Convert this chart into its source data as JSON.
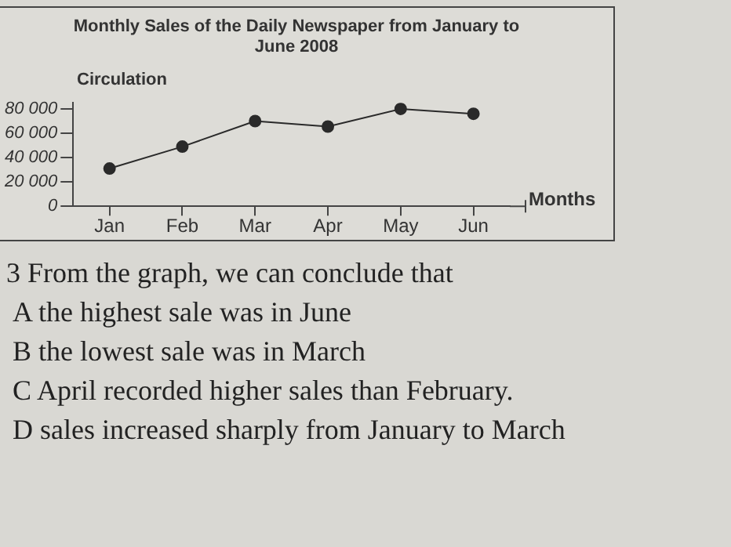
{
  "chart_data": {
    "type": "line",
    "title": "Monthly Sales of the Daily Newspaper from January to June 2008",
    "ylabel": "Circulation",
    "xlabel": "Months",
    "categories": [
      "Jan",
      "Feb",
      "Mar",
      "Apr",
      "May",
      "Jun"
    ],
    "series": [
      {
        "color": "#2a2a2a",
        "values": [
          31000,
          49000,
          70000,
          65500,
          80000,
          76000
        ]
      }
    ],
    "ylim": [
      0,
      85000
    ],
    "yticks": [
      0,
      {
        "value": 20000,
        "label": "20 000"
      },
      {
        "value": 40000,
        "label": "40 000"
      },
      {
        "value": 60000,
        "label": "60 000"
      },
      {
        "value": 80000,
        "label": "80 000"
      }
    ],
    "grid": false,
    "legend": false,
    "marker": "circle",
    "line_style": "solid",
    "annotations": [
      "3 From the graph, we can conclude that",
      "A the highest sale was in June",
      "B the lowest sale was in March",
      "C April recorded higher sales than February.",
      "D sales increased sharply from January to March"
    ]
  }
}
